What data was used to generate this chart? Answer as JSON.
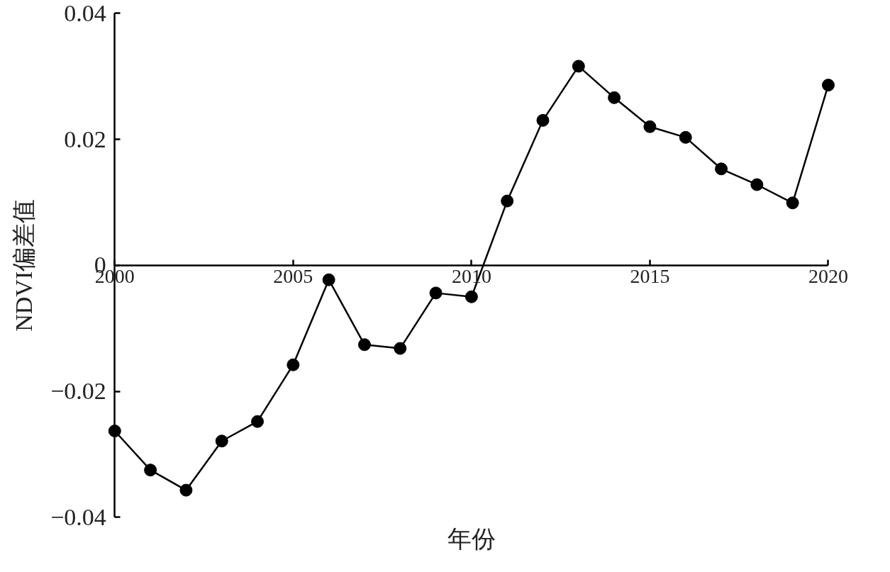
{
  "chart_data": {
    "type": "line",
    "xlabel": "年份",
    "ylabel": "NDVI偏差值",
    "x": [
      2000,
      2001,
      2002,
      2003,
      2004,
      2005,
      2006,
      2007,
      2008,
      2009,
      2010,
      2011,
      2012,
      2013,
      2014,
      2015,
      2016,
      2017,
      2018,
      2019,
      2020
    ],
    "series": [
      {
        "color": "#000000",
        "values": [
          -0.0263,
          -0.0325,
          -0.0357,
          -0.0279,
          -0.0248,
          -0.0158,
          -0.0023,
          -0.0126,
          -0.0132,
          -0.0044,
          -0.005,
          0.0102,
          0.023,
          0.0316,
          0.0266,
          0.022,
          0.0203,
          0.0153,
          0.0128,
          0.0099,
          0.0286
        ]
      }
    ],
    "xlim": [
      2000,
      2020
    ],
    "ylim": [
      -0.04,
      0.04
    ],
    "xticks": [
      2000,
      2005,
      2010,
      2015,
      2020
    ],
    "yticks": [
      0.04,
      0.02,
      0,
      {
        "value": -0.02,
        "label": "−0.02"
      },
      {
        "value": -0.04,
        "label": "−0.04"
      }
    ],
    "marker": "circle",
    "line_style": "solid"
  }
}
